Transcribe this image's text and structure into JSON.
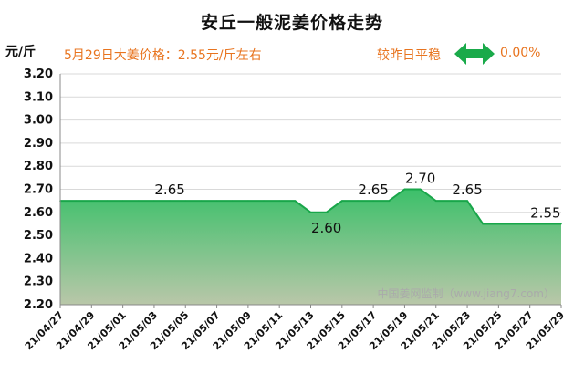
{
  "header": {
    "title": "安丘一般泥姜价格走势",
    "unit": "元/斤",
    "price_line": "5月29日大姜价格：2.55元/斤左右",
    "change_label": "较昨日平稳",
    "change_value": "0.00%"
  },
  "watermark": "中国姜网监制（www.jiang7.com）",
  "colors": {
    "title": "#111111",
    "accent_orange": "#e8741f",
    "arrow_green": "#1aaa4a",
    "area_top": "#3cc06a",
    "area_bottom": "#b9c7a9",
    "line": "#19a64a",
    "grid": "#d9d9d9"
  },
  "chart_data": {
    "type": "area",
    "title": "安丘一般泥姜价格走势",
    "ylabel": "元/斤",
    "ylim": [
      2.2,
      3.2
    ],
    "ytick_step": 0.1,
    "ytick_labels": [
      "2.20",
      "2.30",
      "2.40",
      "2.50",
      "2.60",
      "2.70",
      "2.80",
      "2.90",
      "3.00",
      "3.10",
      "3.20"
    ],
    "grid": true,
    "xtick_labels": [
      "21/04/27",
      "21/04/29",
      "21/05/01",
      "21/05/03",
      "21/05/05",
      "21/05/07",
      "21/05/09",
      "21/05/11",
      "21/05/13",
      "21/05/15",
      "21/05/17",
      "21/05/19",
      "21/05/21",
      "21/05/23",
      "21/05/25",
      "21/05/27",
      "21/05/29"
    ],
    "x": [
      "21/04/27",
      "21/04/28",
      "21/04/29",
      "21/04/30",
      "21/05/01",
      "21/05/02",
      "21/05/03",
      "21/05/04",
      "21/05/05",
      "21/05/06",
      "21/05/07",
      "21/05/08",
      "21/05/09",
      "21/05/10",
      "21/05/11",
      "21/05/12",
      "21/05/13",
      "21/05/14",
      "21/05/15",
      "21/05/16",
      "21/05/17",
      "21/05/18",
      "21/05/19",
      "21/05/20",
      "21/05/21",
      "21/05/22",
      "21/05/23",
      "21/05/24",
      "21/05/25",
      "21/05/26",
      "21/05/27",
      "21/05/28",
      "21/05/29"
    ],
    "series": [
      {
        "values": [
          2.65,
          2.65,
          2.65,
          2.65,
          2.65,
          2.65,
          2.65,
          2.65,
          2.65,
          2.65,
          2.65,
          2.65,
          2.65,
          2.65,
          2.65,
          2.65,
          2.6,
          2.6,
          2.65,
          2.65,
          2.65,
          2.65,
          2.7,
          2.7,
          2.65,
          2.65,
          2.65,
          2.55,
          2.55,
          2.55,
          2.55,
          2.55,
          2.55
        ]
      }
    ],
    "data_labels": [
      {
        "index": 7,
        "text": "2.65"
      },
      {
        "index": 17,
        "text": "2.60"
      },
      {
        "index": 20,
        "text": "2.65"
      },
      {
        "index": 23,
        "text": "2.70"
      },
      {
        "index": 26,
        "text": "2.65"
      },
      {
        "index": 31,
        "text": "2.55"
      }
    ]
  }
}
